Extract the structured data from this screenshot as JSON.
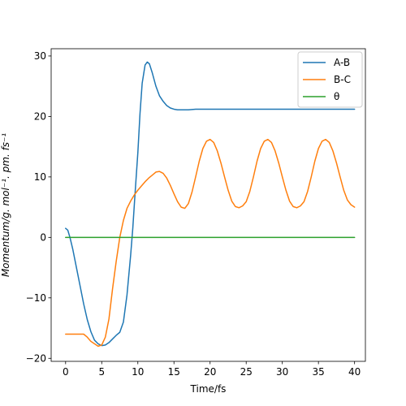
{
  "chart_data": {
    "type": "line",
    "title": "",
    "xlabel": "Time/fs",
    "ylabel": "Momentum/g. mol⁻¹. pm. fs⁻¹",
    "xlim": [
      -2,
      41.5
    ],
    "ylim": [
      -20.5,
      31.2
    ],
    "xticks": [
      0,
      5,
      10,
      15,
      20,
      25,
      30,
      35,
      40
    ],
    "yticks": [
      -20,
      -10,
      0,
      10,
      20,
      30
    ],
    "xtick_labels": [
      "0",
      "5",
      "10",
      "15",
      "20",
      "25",
      "30",
      "35",
      "40"
    ],
    "ytick_labels": [
      "−20",
      "−10",
      "0",
      "10",
      "20",
      "30"
    ],
    "grid": false,
    "legend_position": "top-right",
    "series": [
      {
        "name": "A-B",
        "color": "#1f77b4",
        "x": [
          0,
          0.3,
          0.6,
          1,
          1.5,
          2,
          2.5,
          3,
          3.5,
          4,
          4.5,
          5,
          5.5,
          6,
          6.5,
          7,
          7.5,
          8,
          8.5,
          9,
          9.3,
          9.6,
          10,
          10.3,
          10.6,
          11,
          11.3,
          11.6,
          12,
          12.5,
          13,
          13.5,
          14,
          14.5,
          15,
          15.5,
          16,
          17,
          18,
          20,
          25,
          30,
          35,
          40
        ],
        "y": [
          1.5,
          1.2,
          0,
          -2,
          -5,
          -8,
          -11,
          -13.6,
          -15.6,
          -17,
          -17.6,
          -17.9,
          -17.8,
          -17.4,
          -16.8,
          -16.2,
          -15.7,
          -14,
          -9.5,
          -3,
          1.5,
          7,
          14,
          20.5,
          25.5,
          28.5,
          29,
          28.7,
          27.2,
          25,
          23.4,
          22.5,
          21.8,
          21.4,
          21.2,
          21.1,
          21.1,
          21.1,
          21.2,
          21.2,
          21.2,
          21.2,
          21.2,
          21.2
        ]
      },
      {
        "name": "B-C",
        "color": "#ff7f0e",
        "x": [
          0,
          0.5,
          1,
          1.5,
          2,
          2.5,
          3,
          3.5,
          4,
          4.5,
          5,
          5.5,
          6,
          6.5,
          7,
          7.5,
          8,
          8.5,
          9,
          9.5,
          10,
          10.5,
          11,
          11.5,
          12,
          12.5,
          13,
          13.5,
          14,
          14.5,
          15,
          15.5,
          16,
          16.5,
          17,
          17.5,
          18,
          18.5,
          19,
          19.5,
          20,
          20.5,
          21,
          21.5,
          22,
          22.5,
          23,
          23.5,
          24,
          24.5,
          25,
          25.5,
          26,
          26.5,
          27,
          27.5,
          28,
          28.5,
          29,
          29.5,
          30,
          30.5,
          31,
          31.5,
          32,
          32.5,
          33,
          33.5,
          34,
          34.5,
          35,
          35.5,
          36,
          36.5,
          37,
          37.5,
          38,
          38.5,
          39,
          39.5,
          40
        ],
        "y": [
          -16,
          -16,
          -16,
          -16,
          -16,
          -16,
          -16.5,
          -17.2,
          -17.6,
          -18,
          -17.8,
          -16.5,
          -13.5,
          -8.5,
          -4,
          0,
          2.8,
          4.8,
          6,
          7,
          7.8,
          8.5,
          9.2,
          9.8,
          10.3,
          10.8,
          10.9,
          10.6,
          9.8,
          8.6,
          7.2,
          5.9,
          5,
          4.8,
          5.6,
          7.5,
          10,
          12.6,
          14.7,
          15.9,
          16.2,
          15.7,
          14.3,
          12.3,
          10,
          7.8,
          6,
          5.1,
          4.9,
          5.2,
          5.9,
          7.6,
          10,
          12.6,
          14.7,
          15.9,
          16.2,
          15.7,
          14.3,
          12.3,
          10,
          7.8,
          6,
          5.1,
          4.9,
          5.2,
          5.9,
          7.6,
          10,
          12.6,
          14.7,
          15.9,
          16.2,
          15.7,
          14.3,
          12.3,
          10,
          7.8,
          6.2,
          5.4,
          5
        ]
      },
      {
        "name": "θ",
        "color": "#2ca02c",
        "x": [
          0,
          40
        ],
        "y": [
          0,
          0
        ]
      }
    ]
  }
}
